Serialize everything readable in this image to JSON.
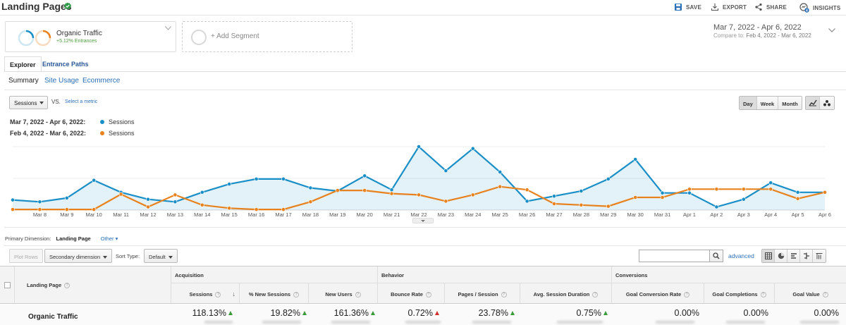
{
  "header": {
    "title": "Landing Pages",
    "actions": {
      "save": "SAVE",
      "export": "EXPORT",
      "share": "SHARE",
      "insights": "INSIGHTS",
      "insights_badge": "4"
    }
  },
  "segment": {
    "name": "Organic Traffic",
    "sub": "+5.12% Entrances"
  },
  "add_segment": "+ Add Segment",
  "date_range": {
    "main": "Mar 7, 2022 - Apr 6, 2022",
    "compare_label": "Compare to:",
    "compare": "Feb 4, 2022 - Mar 6, 2022"
  },
  "tabs": [
    "Explorer",
    "Entrance Paths"
  ],
  "subtabs": [
    "Summary",
    "Site Usage",
    "Ecommerce"
  ],
  "chart_controls": {
    "metric": "Sessions",
    "vs": "VS.",
    "select_metric": "Select a metric",
    "periods": [
      "Day",
      "Week",
      "Month"
    ],
    "active_period": "Day"
  },
  "legend": [
    {
      "range": "Mar 7, 2022 - Apr 6, 2022:",
      "series": "Sessions",
      "color": "#1a8fc7"
    },
    {
      "range": "Feb 4, 2022 - Mar 6, 2022:",
      "series": "Sessions",
      "color": "#e8821e"
    }
  ],
  "chart_data": {
    "type": "line",
    "x": [
      "Mar 7",
      "Mar 8",
      "Mar 9",
      "Mar 10",
      "Mar 11",
      "Mar 12",
      "Mar 13",
      "Mar 14",
      "Mar 15",
      "Mar 16",
      "Mar 17",
      "Mar 18",
      "Mar 19",
      "Mar 20",
      "Mar 21",
      "Mar 22",
      "Mar 23",
      "Mar 24",
      "Mar 25",
      "Mar 26",
      "Mar 27",
      "Mar 28",
      "Mar 29",
      "Mar 30",
      "Mar 31",
      "Apr 1",
      "Apr 2",
      "Apr 3",
      "Apr 4",
      "Apr 5",
      "Apr 6"
    ],
    "x_tick_labels": [
      "Mar 8",
      "Mar 9",
      "Mar 10",
      "Mar 11",
      "Mar 12",
      "Mar 13",
      "Mar 14",
      "Mar 15",
      "Mar 16",
      "Mar 17",
      "Mar 18",
      "Mar 19",
      "Mar 20",
      "Mar 21",
      "Mar 22",
      "Mar 23",
      "Mar 24",
      "Mar 25",
      "Mar 26",
      "Mar 27",
      "Mar 28",
      "Mar 29",
      "Mar 30",
      "Mar 31",
      "Apr 1",
      "Apr 2",
      "Apr 3",
      "Apr 4",
      "Apr 5",
      "Apr 6"
    ],
    "ylim": [
      0,
      100
    ],
    "grid": true,
    "series": [
      {
        "name": "Sessions",
        "color": "#1a8fc7",
        "fill": true,
        "values": [
          16,
          13,
          19,
          47,
          28,
          17,
          13,
          28,
          41,
          49,
          49,
          35,
          30,
          54,
          32,
          100,
          62,
          97,
          60,
          14,
          22,
          30,
          49,
          80,
          27,
          27,
          5,
          17,
          43,
          28,
          28
        ]
      },
      {
        "name": "Sessions",
        "color": "#e8821e",
        "fill": false,
        "values": [
          1,
          1,
          1,
          1,
          25,
          5,
          24,
          8,
          3,
          1,
          1,
          13,
          31,
          31,
          26,
          24,
          14,
          24,
          37,
          32,
          10,
          8,
          6,
          20,
          20,
          33,
          33,
          33,
          33,
          18,
          28
        ]
      }
    ]
  },
  "primary_dimension": {
    "label": "Primary Dimension:",
    "current": "Landing Page",
    "other": "Other"
  },
  "table_controls": {
    "plot_rows": "Plot Rows",
    "secondary_dimension": "Secondary dimension",
    "sort_type_label": "Sort Type:",
    "sort_type": "Default",
    "advanced": "advanced"
  },
  "table": {
    "first_col": "Landing Page",
    "groups": [
      "Acquisition",
      "Behavior",
      "Conversions"
    ],
    "columns": [
      "Sessions",
      "% New Sessions",
      "New Users",
      "Bounce Rate",
      "Pages / Session",
      "Avg. Session Duration",
      "Goal Conversion Rate",
      "Goal Completions",
      "Goal Value"
    ],
    "row_label": "Organic Traffic",
    "row_values": [
      "118.13%",
      "19.82%",
      "161.36%",
      "0.72%",
      "23.78%",
      "0.75%",
      "0.00%",
      "0.00%",
      "0.00%"
    ],
    "row_trends": [
      "up",
      "up",
      "up",
      "down-red",
      "up",
      "up",
      "",
      "",
      ""
    ]
  }
}
